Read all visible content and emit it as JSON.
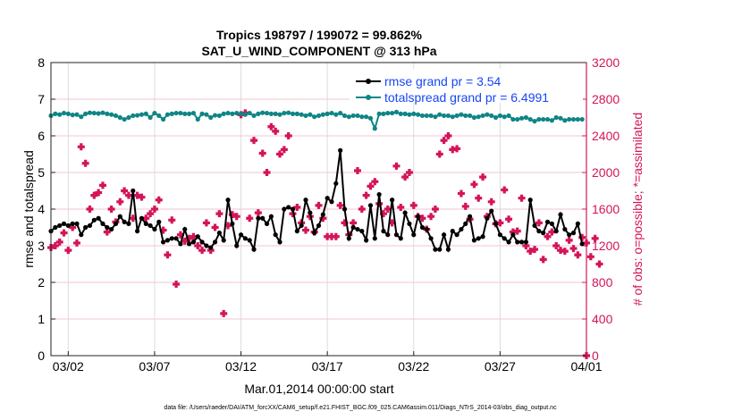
{
  "chart_data": {
    "type": "line",
    "title_line1": "Tropics 198797 / 199072 = 99.862%",
    "title_line2": "SAT_U_WIND_COMPONENT @ 313 hPa",
    "xlabel": "Mar.01,2014 00:00:00 start",
    "ylabel": "rmse and totalspread",
    "ylabel_right": "# of obs: o=possible; *=assimilated",
    "footer": "data file: /Users/raeder/DAI/ATM_forcXX/CAM6_setup/f.e21.FHIST_BGC.f09_025.CAM6assim.011/Diags_NTrS_2014-03/obs_diag_output.nc",
    "xlim_days": [
      0,
      31
    ],
    "ylim": [
      0,
      8
    ],
    "ylim_right": [
      0,
      3200
    ],
    "x_ticks": [
      {
        "day": 1,
        "label": "03/02"
      },
      {
        "day": 6,
        "label": "03/07"
      },
      {
        "day": 11,
        "label": "03/12"
      },
      {
        "day": 16,
        "label": "03/17"
      },
      {
        "day": 21,
        "label": "03/22"
      },
      {
        "day": 26,
        "label": "03/27"
      },
      {
        "day": 31,
        "label": "04/01"
      }
    ],
    "y_ticks": [
      "0",
      "1",
      "2",
      "3",
      "4",
      "5",
      "6",
      "7",
      "8"
    ],
    "y_ticks_right": [
      "0",
      "400",
      "800",
      "1200",
      "1600",
      "2000",
      "2400",
      "2800",
      "3200"
    ],
    "step_days": 0.25,
    "legend": [
      "rmse grand pr = 3.54",
      "totalspread grand pr = 6.4991"
    ],
    "colors": {
      "rmse": "#000000",
      "totalspread": "#0f8585",
      "obs": "#d4145a",
      "legend_text": "#1846f5"
    },
    "series": [
      {
        "name": "rmse",
        "axis": "left",
        "values": [
          3.4,
          3.5,
          3.55,
          3.6,
          3.55,
          3.6,
          3.6,
          3.3,
          3.5,
          3.55,
          3.7,
          3.75,
          3.6,
          3.5,
          3.45,
          3.6,
          3.8,
          3.65,
          3.6,
          4.5,
          3.4,
          3.75,
          3.6,
          3.55,
          3.45,
          3.65,
          3.1,
          3.15,
          3.2,
          3.2,
          3.05,
          3.45,
          3.05,
          3.1,
          3.25,
          3.1,
          3.0,
          2.95,
          3.1,
          3.35,
          3.15,
          4.25,
          3.6,
          3.0,
          3.3,
          3.2,
          3.15,
          2.9,
          3.75,
          3.75,
          3.6,
          3.8,
          3.3,
          3.1,
          4.0,
          4.05,
          4.0,
          3.4,
          3.55,
          4.25,
          3.9,
          3.35,
          3.55,
          3.85,
          4.3,
          4.2,
          4.7,
          5.6,
          4.0,
          3.2,
          3.5,
          3.45,
          3.4,
          3.15,
          4.1,
          3.2,
          4.4,
          3.4,
          3.3,
          4.25,
          3.3,
          3.2,
          3.9,
          3.6,
          3.3,
          3.8,
          3.5,
          3.45,
          3.2,
          2.9,
          2.9,
          3.3,
          2.9,
          3.4,
          3.3,
          3.45,
          3.6,
          3.8,
          3.15,
          3.2,
          3.25,
          3.75,
          3.95,
          3.6,
          3.3,
          3.2,
          3.1,
          3.3,
          3.1,
          3.1,
          3.1,
          4.25,
          3.55,
          3.4,
          3.35,
          3.65,
          3.6,
          3.4,
          3.85,
          3.45,
          3.3,
          3.35,
          3.6,
          3.05
        ]
      },
      {
        "name": "totalspread",
        "axis": "left",
        "values": [
          6.55,
          6.6,
          6.58,
          6.62,
          6.6,
          6.57,
          6.58,
          6.52,
          6.6,
          6.63,
          6.62,
          6.61,
          6.63,
          6.6,
          6.58,
          6.55,
          6.5,
          6.45,
          6.5,
          6.55,
          6.56,
          6.58,
          6.6,
          6.5,
          6.62,
          6.55,
          6.45,
          6.58,
          6.6,
          6.62,
          6.62,
          6.6,
          6.6,
          6.62,
          6.45,
          6.6,
          6.58,
          6.5,
          6.56,
          6.55,
          6.6,
          6.62,
          6.6,
          6.62,
          6.6,
          6.58,
          6.62,
          6.55,
          6.6,
          6.63,
          6.62,
          6.6,
          6.6,
          6.58,
          6.62,
          6.63,
          6.6,
          6.6,
          6.58,
          6.55,
          6.58,
          6.52,
          6.55,
          6.58,
          6.6,
          6.62,
          6.58,
          6.62,
          6.55,
          6.52,
          6.55,
          6.55,
          6.52,
          6.52,
          6.48,
          6.2,
          6.6,
          6.6,
          6.62,
          6.62,
          6.65,
          6.6,
          6.6,
          6.58,
          6.6,
          6.58,
          6.55,
          6.55,
          6.55,
          6.52,
          6.58,
          6.55,
          6.55,
          6.52,
          6.55,
          6.58,
          6.55,
          6.55,
          6.5,
          6.52,
          6.55,
          6.58,
          6.55,
          6.5,
          6.55,
          6.52,
          6.55,
          6.45,
          6.45,
          6.48,
          6.5,
          6.45,
          6.4,
          6.45,
          6.45,
          6.45,
          6.42,
          6.5,
          6.48,
          6.42,
          6.45,
          6.45,
          6.45,
          6.45
        ]
      },
      {
        "name": "obs_assimilated",
        "axis": "right",
        "values": [
          1180,
          1200,
          1240,
          1340,
          1150,
          1400,
          1230,
          2280,
          2100,
          1600,
          1750,
          1780,
          1860,
          1350,
          1600,
          1460,
          1680,
          1800,
          1750,
          1500,
          1750,
          1730,
          1500,
          1550,
          1600,
          1700,
          1370,
          1100,
          1480,
          780,
          1320,
          1250,
          1280,
          1300,
          1200,
          1150,
          1450,
          1150,
          1400,
          1550,
          460,
          1420,
          1540,
          1520,
          2630,
          2650,
          1500,
          2350,
          1560,
          2210,
          2000,
          2500,
          2450,
          2200,
          2250,
          2400,
          1550,
          1620,
          1450,
          1370,
          1520,
          1350,
          1640,
          1500,
          1300,
          1300,
          1300,
          1640,
          1450,
          1320,
          1450,
          2020,
          1600,
          1750,
          1850,
          1900,
          1660,
          1550,
          1600,
          1450,
          2070,
          1620,
          1950,
          2000,
          1640,
          1520,
          1500,
          1380,
          1520,
          1600,
          2200,
          2350,
          2400,
          2250,
          2260,
          1770,
          1630,
          1490,
          1870,
          1720,
          1950,
          1520,
          1680,
          1440,
          1450,
          1810,
          1490,
          1350,
          1360,
          1720,
          1200,
          1140,
          1160,
          1450,
          1050,
          1300,
          1350,
          1200,
          1150,
          1140,
          1260,
          1170,
          1100,
          1290,
          1230,
          1080,
          1280,
          1000
        ]
      }
    ]
  }
}
